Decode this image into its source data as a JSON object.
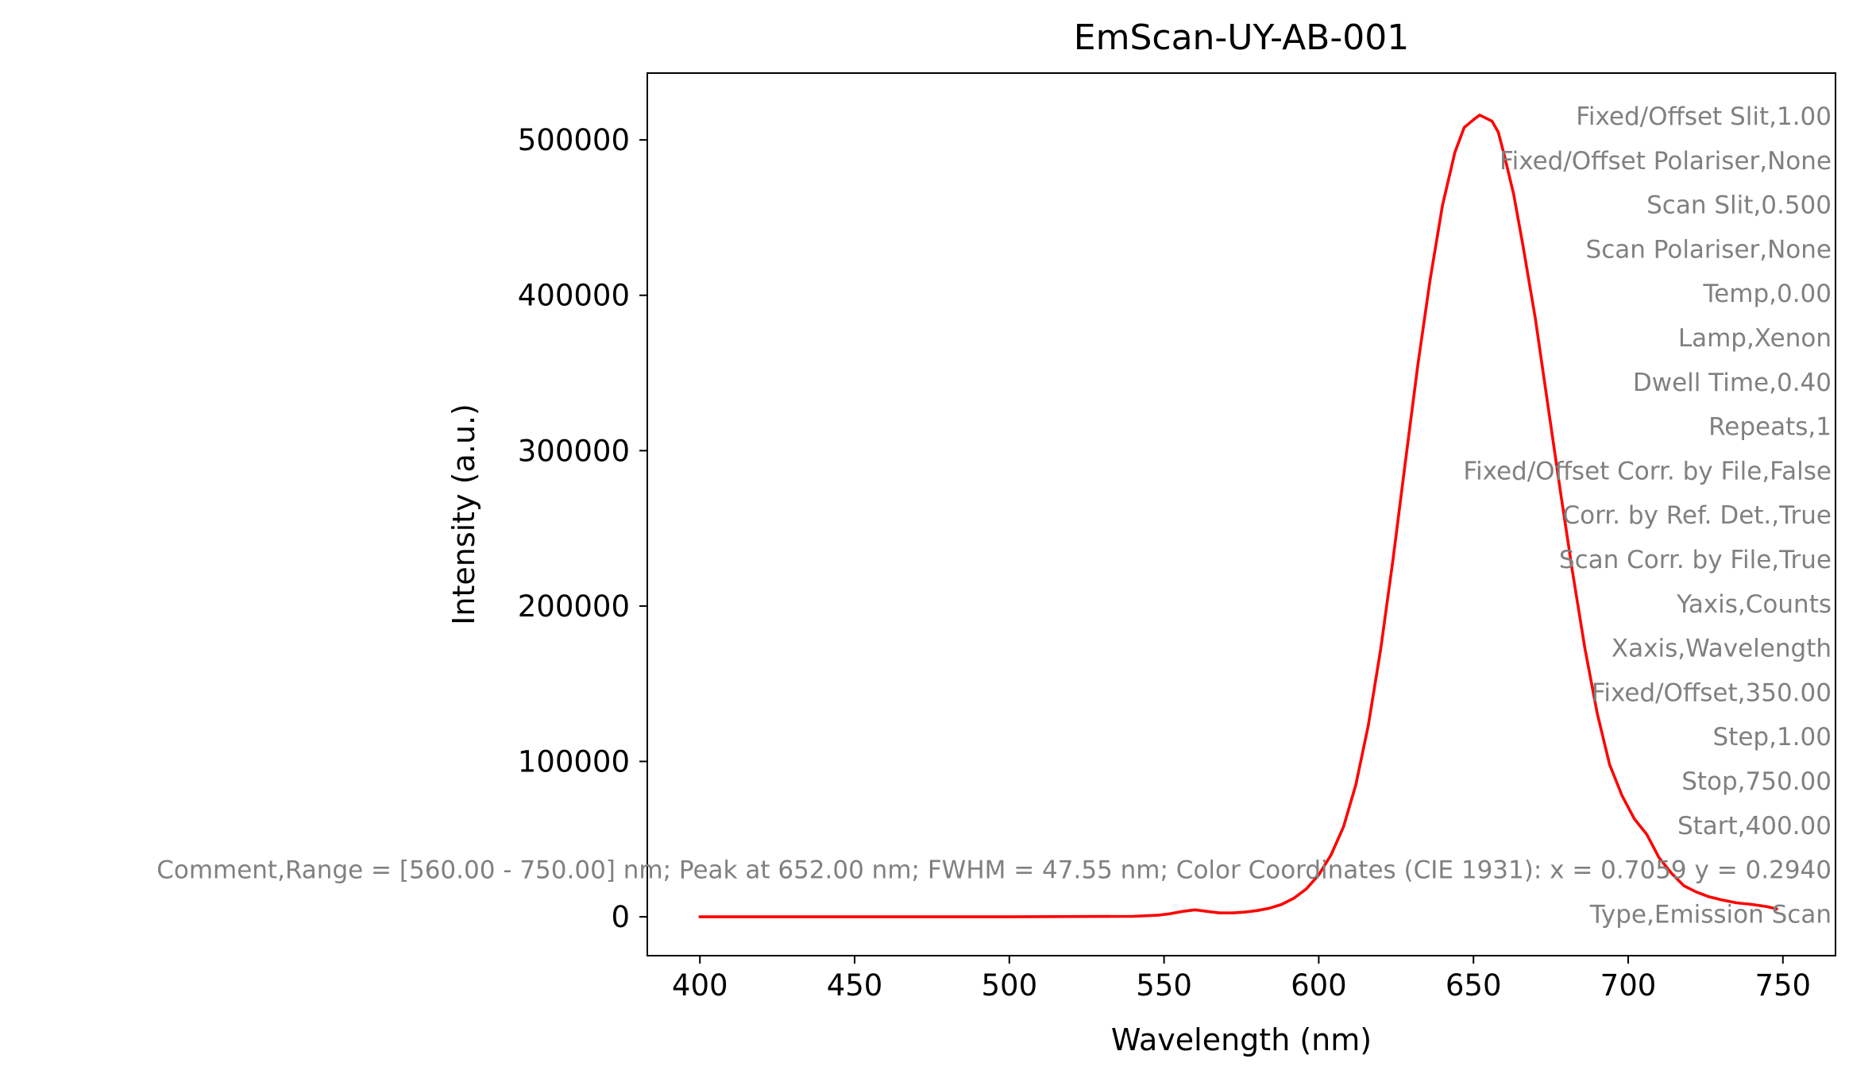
{
  "chart_data": {
    "type": "line",
    "title": "EmScan-UY-AB-001",
    "xlabel": "Wavelength (nm)",
    "ylabel": "Intensity (a.u.)",
    "xlim": [
      383,
      767
    ],
    "ylim": [
      -25000,
      543000
    ],
    "x_ticks": [
      400,
      450,
      500,
      550,
      600,
      650,
      700,
      750
    ],
    "x_tick_labels": [
      "400",
      "450",
      "500",
      "550",
      "600",
      "650",
      "700",
      "750"
    ],
    "y_ticks": [
      0,
      100000,
      200000,
      300000,
      400000,
      500000
    ],
    "y_tick_labels": [
      "0",
      "100000",
      "200000",
      "300000",
      "400000",
      "500000"
    ],
    "grid": false,
    "legend": "none",
    "series": [
      {
        "color": "#ff0000",
        "x": [
          400,
          450,
          500,
          540,
          548,
          552,
          556,
          560,
          564,
          568,
          572,
          576,
          580,
          584,
          588,
          592,
          596,
          600,
          604,
          608,
          612,
          616,
          620,
          624,
          628,
          632,
          636,
          640,
          644,
          647,
          650,
          652,
          654,
          656,
          658,
          660,
          663,
          666,
          670,
          674,
          678,
          682,
          686,
          690,
          694,
          698,
          702,
          706,
          710,
          714,
          718,
          722,
          726,
          730,
          735,
          740,
          745,
          748
        ],
        "y": [
          0,
          0,
          0,
          300,
          1000,
          2000,
          3500,
          4500,
          3500,
          2500,
          2500,
          3000,
          4000,
          5500,
          8000,
          12000,
          18000,
          27000,
          40000,
          58000,
          85000,
          123000,
          172000,
          230000,
          293000,
          355000,
          410000,
          458000,
          492000,
          508000,
          513000,
          516000,
          514000,
          512000,
          505000,
          490000,
          465000,
          432000,
          385000,
          330000,
          275000,
          222000,
          173000,
          131000,
          98000,
          78000,
          63000,
          53000,
          38000,
          28000,
          20000,
          16000,
          13000,
          11000,
          9000,
          8000,
          6500,
          5000
        ]
      }
    ],
    "annotations": [
      "Fixed/Offset Slit,1.00",
      "Fixed/Offset Polariser,None",
      "Scan Slit,0.500",
      "Scan Polariser,None",
      "Temp,0.00",
      "Lamp,Xenon",
      "Dwell Time,0.40",
      "Repeats,1",
      "Fixed/Offset Corr. by File,False",
      "Corr. by Ref. Det.,True",
      "Scan Corr. by File,True",
      "Yaxis,Counts",
      "Xaxis,Wavelength",
      "Fixed/Offset,350.00",
      "Step,1.00",
      "Stop,750.00",
      "Start,400.00",
      "Comment,Range = [560.00 - 750.00] nm; Peak at 652.00 nm; FWHM = 47.55 nm; Color Coordinates (CIE 1931): x = 0.7059 y = 0.2940",
      "Type,Emission Scan"
    ],
    "colors": {
      "line": "#ff0000",
      "annotation_text": "#808080",
      "axes": "#000000"
    }
  }
}
